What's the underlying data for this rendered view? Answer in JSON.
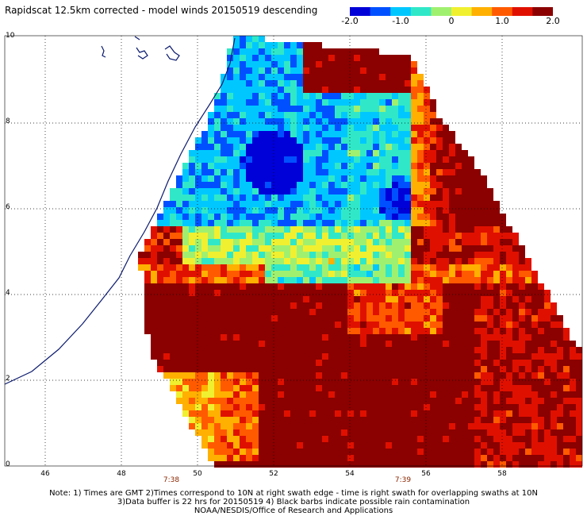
{
  "title": "Rapidscat 12.5km corrected - model winds 20150519 descending",
  "colorbar": {
    "labels": [
      "-2.0",
      "-1.0",
      "0",
      "1.0",
      "2.0"
    ],
    "range": [
      -2.0,
      2.0
    ],
    "colors": [
      "#0000d8",
      "#0050ff",
      "#00c8ff",
      "#30e8c8",
      "#a0f070",
      "#f0f030",
      "#ffb000",
      "#ff5a00",
      "#e01000",
      "#8b0000"
    ]
  },
  "map": {
    "x_labels": [
      "46",
      "48",
      "50",
      "52",
      "54",
      "56",
      "58"
    ],
    "y_labels": [
      "0",
      "2",
      "4",
      "6",
      "8",
      "10"
    ],
    "time_labels": [
      "7:38",
      "7:39"
    ]
  },
  "notes": [
    "Note: 1) Times are GMT 2)Times correspond to 10N at right swath edge - time is right swath for overlapping swaths at 10N",
    "3)Data buffer is 22 hrs for 20150519 4) Black barbs indicate possible rain contamination",
    "NOAA/NESDIS/Office of Research and Applications"
  ]
}
